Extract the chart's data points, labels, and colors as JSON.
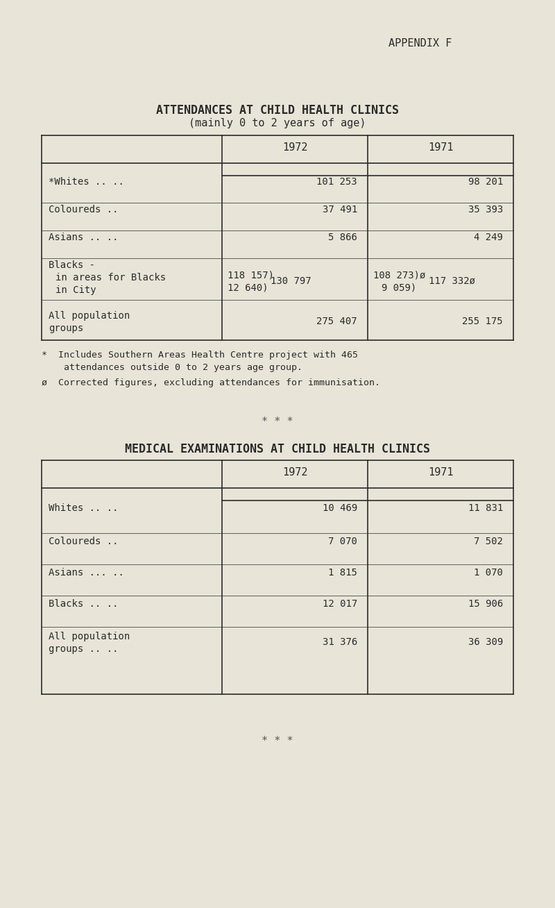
{
  "bg_color": "#e8e4d8",
  "text_color": "#2a2a2a",
  "separator_color": "#555555",
  "appendix_label": "APPENDIX F",
  "table1_title1": "ATTENDANCES AT CHILD HEALTH CLINICS",
  "table1_title2": "(mainly 0 to 2 years of age)",
  "table1_footnote1": "*  Includes Southern Areas Health Centre project with 465",
  "table1_footnote2": "    attendances outside 0 to 2 years age group.",
  "table1_footnote3": "ø  Corrected figures, excluding attendances for immunisation.",
  "separator": "* * *",
  "table2_title": "MEDICAL EXAMINATIONS AT CHILD HEALTH CLINICS",
  "footer_separator": "* * *"
}
